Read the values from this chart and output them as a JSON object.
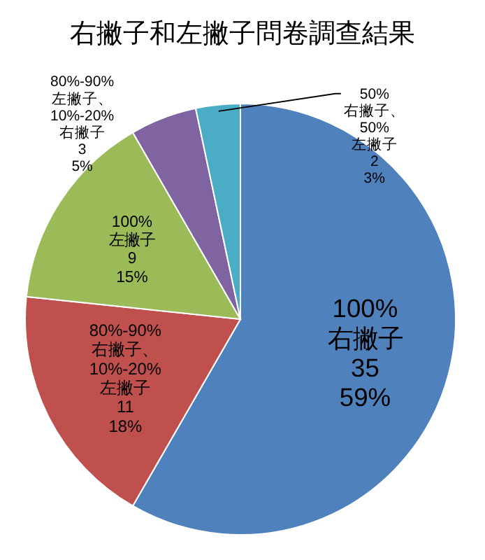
{
  "chart_data": {
    "type": "pie",
    "title": "右撇子和左撇子問卷調查結果",
    "categories": [
      "100%右撇子",
      "80%-90%右撇子、10%-20%左撇子",
      "100%左撇子",
      "80%-90%左撇子、10%-20%右撇子",
      "50%右撇子、50%左撇子"
    ],
    "values": [
      35,
      11,
      9,
      3,
      2
    ],
    "value_labels": [
      "35\n59%",
      "11\n18%",
      "9\n15%",
      "3\n5%",
      "2\n3%"
    ],
    "colors": [
      "#4f81bd",
      "#c0504d",
      "#9bbb59",
      "#8064a2",
      "#4bacc6"
    ]
  }
}
